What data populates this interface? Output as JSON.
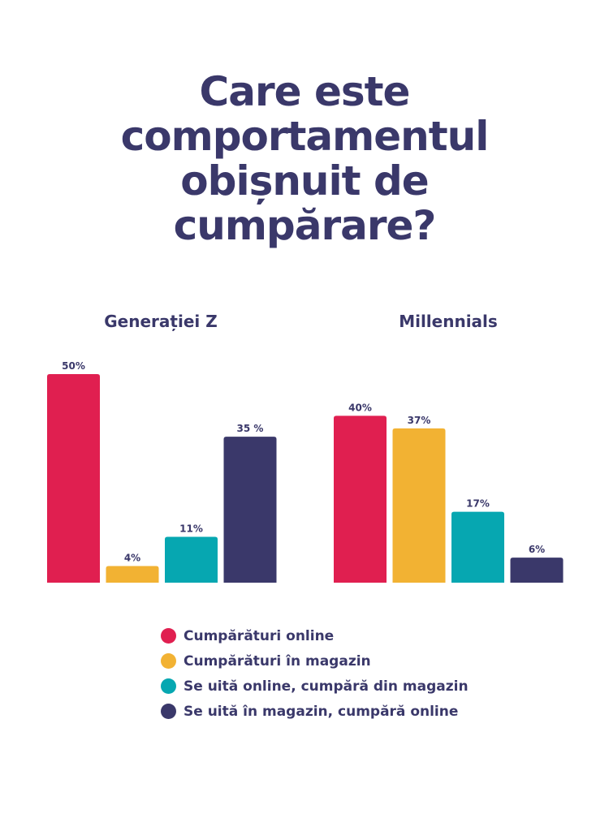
{
  "chart_data": {
    "type": "bar",
    "title_lines": [
      "Care este",
      "comportamentul",
      "obișnuit de",
      "cumpărare?"
    ],
    "groups": [
      "Generației Z",
      "Millennials"
    ],
    "series": [
      {
        "name": "Cumpărături online",
        "color": "#e01f50",
        "values": [
          50,
          40
        ],
        "labels": [
          "50%",
          "40%"
        ]
      },
      {
        "name": "Cumpărături în magazin",
        "color": "#f2b233",
        "values": [
          4,
          37
        ],
        "labels": [
          "4%",
          "37%"
        ]
      },
      {
        "name": "Se uită online, cumpără din magazin",
        "color": "#06a7b1",
        "values": [
          11,
          17
        ],
        "labels": [
          "11%",
          "17%"
        ]
      },
      {
        "name": "Se uită în magazin, cumpără online",
        "color": "#3a386a",
        "values": [
          35,
          6
        ],
        "labels": [
          "35 %",
          "6%"
        ]
      }
    ],
    "ylim": [
      0,
      50
    ],
    "legend_position": "bottom",
    "grid": false
  }
}
